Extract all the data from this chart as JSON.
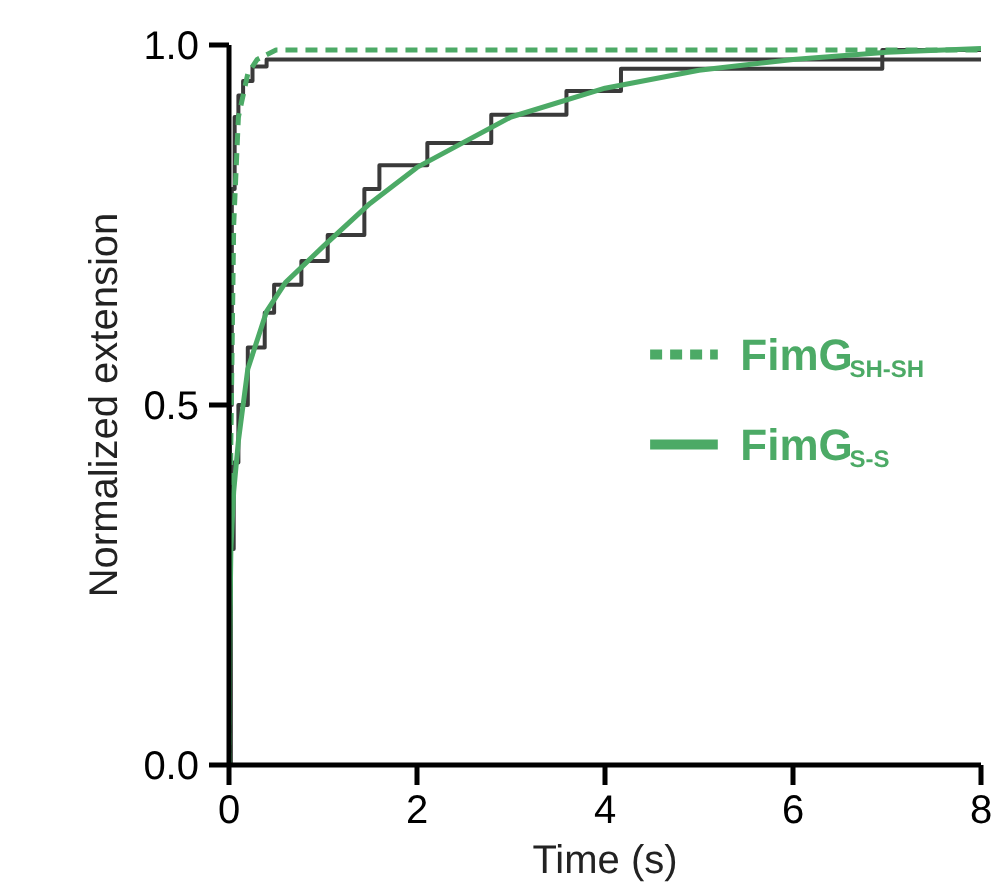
{
  "chart_data": {
    "type": "line",
    "xlabel": "Time (s)",
    "ylabel": "Normalized extension",
    "xlim": [
      0,
      8
    ],
    "ylim": [
      0,
      1
    ],
    "xticks": [
      0,
      2,
      4,
      6,
      8
    ],
    "yticks": [
      {
        "value": 0,
        "label": "0.0"
      },
      {
        "value": 0.5,
        "label": "0.5"
      },
      {
        "value": 1,
        "label": "1.0"
      }
    ],
    "grid": false,
    "legend": "right",
    "series": [
      {
        "type": "step",
        "color": "#3a3a3a",
        "x": [
          0,
          0.01,
          0.03,
          0.06,
          0.1,
          0.15,
          0.25,
          0.4,
          8
        ],
        "values": [
          0,
          0.5,
          0.8,
          0.9,
          0.93,
          0.95,
          0.97,
          0.98,
          0.98
        ]
      },
      {
        "type": "step",
        "color": "#3a3a3a",
        "x": [
          0,
          0.02,
          0.05,
          0.1,
          0.2,
          0.38,
          0.48,
          0.77,
          1.05,
          1.44,
          1.6,
          2.11,
          2.79,
          3.59,
          4.17,
          6.95,
          8
        ],
        "values": [
          0,
          0.3,
          0.42,
          0.5,
          0.58,
          0.628,
          0.667,
          0.7,
          0.736,
          0.8,
          0.833,
          0.864,
          0.903,
          0.936,
          0.967,
          0.993,
          0.993
        ]
      },
      {
        "name": "FimG$_{SH-SH}$",
        "color": "#4caa66",
        "line_style": "dashed",
        "x": [
          0,
          0.01,
          0.02,
          0.05,
          0.1,
          0.2,
          0.3,
          0.5,
          1,
          8
        ],
        "values": [
          0,
          0.3,
          0.45,
          0.75,
          0.9,
          0.96,
          0.98,
          0.993,
          0.993,
          0.993
        ]
      },
      {
        "name": "FimG$_{S-S}$",
        "color": "#4caa66",
        "line_style": "solid",
        "x": [
          0,
          0.01,
          0.02,
          0.05,
          0.1,
          0.2,
          0.4,
          0.6,
          1,
          1.5,
          2,
          3,
          4,
          5,
          6,
          7,
          8
        ],
        "values": [
          0,
          0.2,
          0.3,
          0.38,
          0.45,
          0.55,
          0.63,
          0.67,
          0.72,
          0.78,
          0.83,
          0.9,
          0.94,
          0.965,
          0.98,
          0.99,
          0.995
        ]
      }
    ]
  }
}
